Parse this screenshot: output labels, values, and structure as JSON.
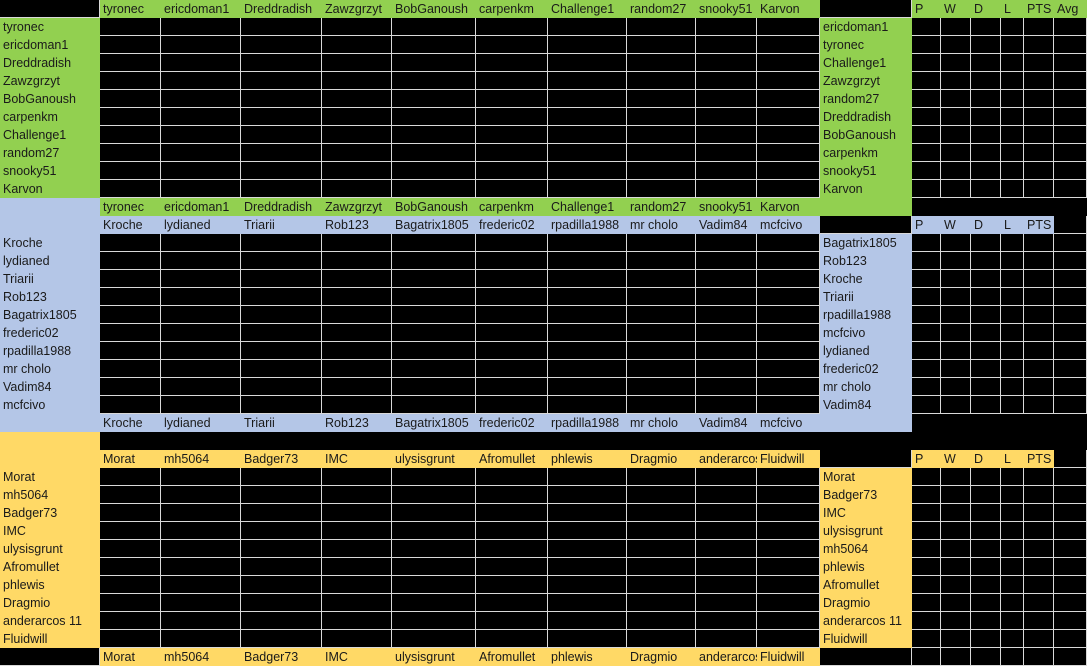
{
  "colors": {
    "group1": "#92d050",
    "group2": "#b4c6e7",
    "group3": "#ffd966",
    "grid": "#000000"
  },
  "groups": [
    {
      "id": "group1",
      "color": "#92d050",
      "players": [
        "tyronec",
        "ericdoman1",
        "Dreddradish",
        "Zawzgrzyt",
        "BobGanoush",
        "carpenkm",
        "Challenge1",
        "random27",
        "snooky51",
        "Karvon"
      ],
      "standings": [
        "ericdoman1",
        "tyronec",
        "Challenge1",
        "Zawzgrzyt",
        "random27",
        "Dreddradish",
        "BobGanoush",
        "carpenkm",
        "snooky51",
        "Karvon"
      ],
      "stat_headers": [
        "P",
        "W",
        "D",
        "L",
        "PTS",
        "Avg"
      ]
    },
    {
      "id": "group2",
      "color": "#b4c6e7",
      "players": [
        "Kroche",
        "lydianed",
        "Triarii",
        "Rob123",
        "Bagatrix1805",
        "frederic02",
        "rpadilla1988",
        "mr cholo",
        "Vadim84",
        "mcfcivo"
      ],
      "standings": [
        "Bagatrix1805",
        "Rob123",
        "Kroche",
        "Triarii",
        "rpadilla1988",
        "mcfcivo",
        "lydianed",
        "frederic02",
        "mr cholo",
        "Vadim84"
      ],
      "stat_headers": [
        "P",
        "W",
        "D",
        "L",
        "PTS"
      ]
    },
    {
      "id": "group3",
      "color": "#ffd966",
      "players": [
        "Morat",
        "mh5064",
        "Badger73",
        "IMC",
        "ulysisgrunt",
        "Afromullet",
        "phlewis",
        "Dragmio",
        "anderarcos 11",
        "Fluidwill"
      ],
      "standings": [
        "Morat",
        "Badger73",
        "IMC",
        "ulysisgrunt",
        "mh5064",
        "phlewis",
        "Afromullet",
        "Dragmio",
        "anderarcos 11",
        "Fluidwill"
      ],
      "stat_headers": [
        "P",
        "W",
        "D",
        "L",
        "PTS"
      ]
    }
  ]
}
